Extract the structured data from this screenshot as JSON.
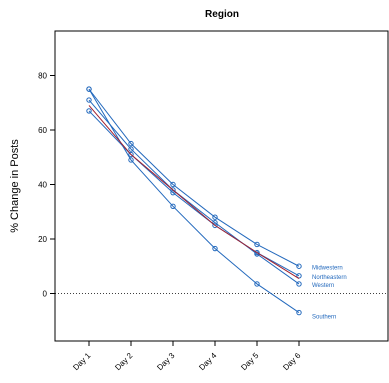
{
  "chart_data": {
    "type": "line",
    "title": "Region",
    "xlabel": "",
    "ylabel": "% Change in Posts",
    "categories": [
      "Day 1",
      "Day 2",
      "Day 3",
      "Day 4",
      "Day 5",
      "Day 6"
    ],
    "yticks": [
      0,
      20,
      40,
      60,
      80
    ],
    "ylim": [
      -13,
      96
    ],
    "grid": false,
    "reference_line": {
      "y": 0,
      "style": "dotted"
    },
    "colors": {
      "series_line": "#2369bd",
      "series_marker": "#2369bd",
      "highlight_line": "#a4202f",
      "series_label": "#2369bd"
    },
    "series": [
      {
        "name": "Midwestern",
        "values": [
          75,
          55,
          40,
          28,
          18,
          10
        ]
      },
      {
        "name": "Northeastern",
        "values": [
          67,
          51,
          37,
          25,
          15,
          6.5
        ]
      },
      {
        "name": "Western",
        "values": [
          71,
          53,
          38,
          26,
          14.5,
          3.5
        ]
      },
      {
        "name": "Southern",
        "values": [
          75,
          49,
          32,
          16.5,
          3.5,
          -7
        ]
      }
    ],
    "overall_line": {
      "values": [
        69,
        51,
        38,
        25,
        15,
        5.5
      ]
    }
  }
}
